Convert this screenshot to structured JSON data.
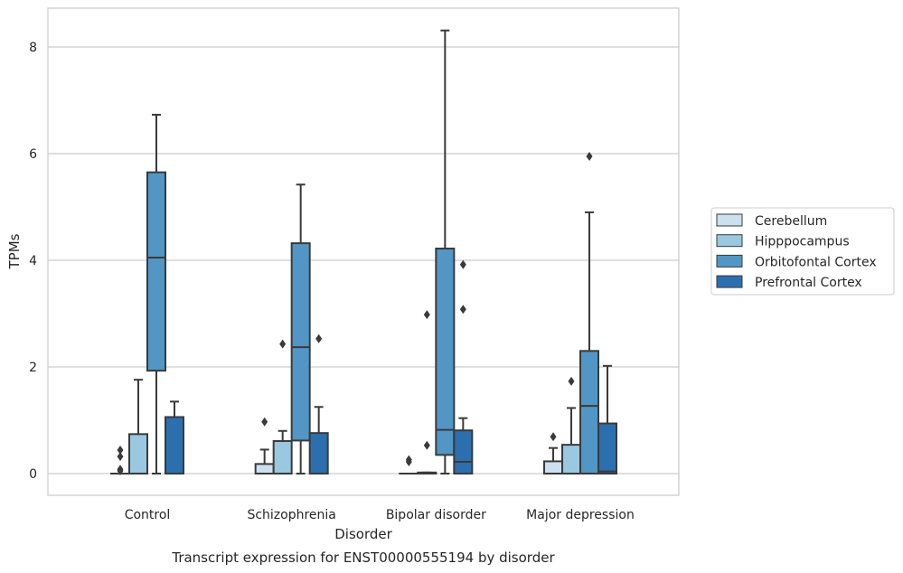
{
  "chart_data": {
    "type": "box",
    "title": "",
    "caption": "Transcript expression for ENST00000555194 by disorder",
    "xlabel": "Disorder",
    "ylabel": "TPMs",
    "ylim": [
      -0.4,
      8.75
    ],
    "yticks": [
      0,
      2,
      4,
      6,
      8
    ],
    "grid": "horizontal",
    "legend_position": "right",
    "categories": [
      "Control",
      "Schizophrenia",
      "Bipolar disorder",
      "Major depression"
    ],
    "series": [
      {
        "name": "Cerebellum",
        "color": "#cde0ef",
        "boxes": [
          {
            "whisker_low": 0,
            "q1": 0,
            "median": 0,
            "q3": 0,
            "whisker_high": 0,
            "outliers": [
              0.05,
              0.08,
              0.32,
              0.44
            ]
          },
          {
            "whisker_low": 0,
            "q1": 0,
            "median": 0,
            "q3": 0.18,
            "whisker_high": 0.45,
            "outliers": [
              0.97
            ]
          },
          {
            "whisker_low": 0,
            "q1": 0,
            "median": 0,
            "q3": 0,
            "whisker_high": 0,
            "outliers": [
              0.22,
              0.26
            ]
          },
          {
            "whisker_low": 0,
            "q1": 0,
            "median": 0,
            "q3": 0.23,
            "whisker_high": 0.48,
            "outliers": [
              0.69
            ]
          }
        ]
      },
      {
        "name": "Hipppocampus",
        "color": "#9ac8e0",
        "boxes": [
          {
            "whisker_low": 0,
            "q1": 0,
            "median": 0,
            "q3": 0.74,
            "whisker_high": 1.76,
            "outliers": []
          },
          {
            "whisker_low": 0,
            "q1": 0,
            "median": 0,
            "q3": 0.61,
            "whisker_high": 0.8,
            "outliers": [
              2.43
            ]
          },
          {
            "whisker_low": 0,
            "q1": 0,
            "median": 0,
            "q3": 0.02,
            "whisker_high": 0.02,
            "outliers": [
              0.53,
              2.98
            ]
          },
          {
            "whisker_low": 0,
            "q1": 0,
            "median": 0,
            "q3": 0.54,
            "whisker_high": 1.23,
            "outliers": [
              1.73
            ]
          }
        ]
      },
      {
        "name": "Orbitofontal Cortex",
        "color": "#5296c6",
        "boxes": [
          {
            "whisker_low": 0,
            "q1": 1.93,
            "median": 4.05,
            "q3": 5.65,
            "whisker_high": 6.73,
            "outliers": []
          },
          {
            "whisker_low": 0,
            "q1": 0.62,
            "median": 2.37,
            "q3": 4.32,
            "whisker_high": 5.42,
            "outliers": []
          },
          {
            "whisker_low": 0,
            "q1": 0.35,
            "median": 0.82,
            "q3": 4.22,
            "whisker_high": 8.31,
            "outliers": []
          },
          {
            "whisker_low": 0,
            "q1": 0,
            "median": 1.27,
            "q3": 2.3,
            "whisker_high": 4.9,
            "outliers": [
              5.95
            ]
          }
        ]
      },
      {
        "name": "Prefrontal Cortex",
        "color": "#2c6faf",
        "boxes": [
          {
            "whisker_low": 0,
            "q1": 0,
            "median": 0,
            "q3": 1.06,
            "whisker_high": 1.35,
            "outliers": []
          },
          {
            "whisker_low": 0,
            "q1": 0,
            "median": 0,
            "q3": 0.76,
            "whisker_high": 1.25,
            "outliers": [
              2.53
            ]
          },
          {
            "whisker_low": 0,
            "q1": 0,
            "median": 0.22,
            "q3": 0.81,
            "whisker_high": 1.04,
            "outliers": [
              3.08,
              3.92
            ]
          },
          {
            "whisker_low": 0,
            "q1": 0,
            "median": 0.04,
            "q3": 0.94,
            "whisker_high": 2.02,
            "outliers": []
          }
        ]
      }
    ]
  }
}
